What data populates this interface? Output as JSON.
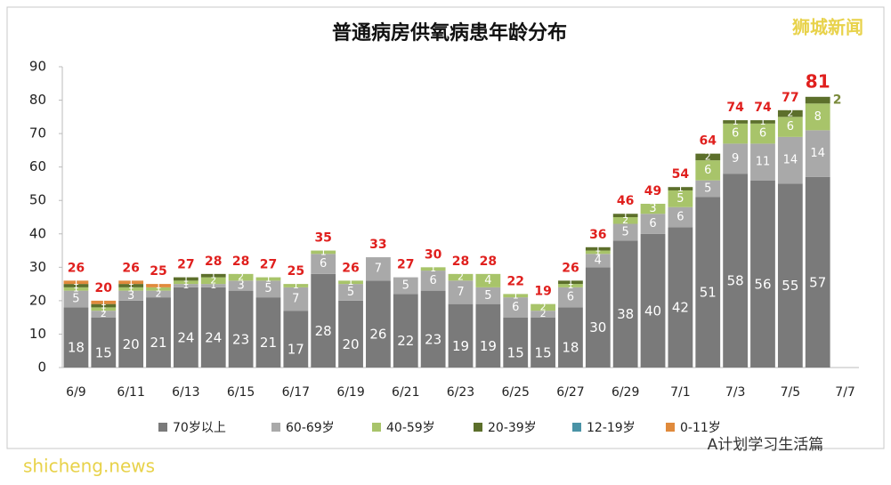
{
  "chart_data": {
    "type": "stacked-bar",
    "title": "普通病房供氧病患年龄分布",
    "categories": [
      "6/9",
      null,
      "6/11",
      null,
      "6/13",
      null,
      "6/15",
      null,
      "6/17",
      null,
      "6/19",
      null,
      "6/21",
      null,
      "6/23",
      null,
      "6/25",
      null,
      "6/27",
      null,
      "6/29",
      null,
      "7/1",
      null,
      "7/3",
      null,
      "7/5",
      null,
      "7/7"
    ],
    "series": [
      {
        "name": "70岁以上",
        "color": "#7a7a7a",
        "values": [
          18,
          15,
          20,
          21,
          24,
          24,
          23,
          21,
          17,
          28,
          20,
          26,
          22,
          23,
          19,
          19,
          15,
          15,
          18,
          30,
          38,
          40,
          42,
          51,
          58,
          56,
          55,
          57,
          null
        ]
      },
      {
        "name": "60-69岁",
        "color": "#a9a9a9",
        "values": [
          5,
          2,
          3,
          2,
          1,
          1,
          3,
          5,
          7,
          6,
          5,
          7,
          5,
          6,
          7,
          5,
          6,
          2,
          6,
          4,
          5,
          6,
          6,
          5,
          9,
          11,
          14,
          14,
          null
        ]
      },
      {
        "name": "40-59岁",
        "color": "#a8c46a",
        "values": [
          1,
          1,
          1,
          1,
          1,
          2,
          2,
          1,
          1,
          1,
          1,
          0,
          0,
          1,
          2,
          4,
          1,
          2,
          1,
          1,
          2,
          3,
          5,
          6,
          6,
          6,
          6,
          8,
          null
        ]
      },
      {
        "name": "20-39岁",
        "color": "#5c6f2b",
        "values": [
          1,
          1,
          1,
          0,
          1,
          1,
          0,
          0,
          0,
          0,
          0,
          0,
          0,
          0,
          0,
          0,
          0,
          0,
          1,
          1,
          1,
          0,
          1,
          2,
          1,
          1,
          2,
          2,
          null
        ]
      },
      {
        "name": "12-19岁",
        "color": "#4a93a6",
        "values": [
          0,
          0,
          0,
          0,
          0,
          0,
          0,
          0,
          0,
          0,
          0,
          0,
          0,
          0,
          0,
          0,
          0,
          0,
          0,
          0,
          0,
          0,
          0,
          0,
          0,
          0,
          0,
          0,
          null
        ]
      },
      {
        "name": "0-11岁",
        "color": "#e08a3c",
        "values": [
          1,
          1,
          1,
          1,
          0,
          0,
          0,
          0,
          0,
          0,
          0,
          0,
          0,
          0,
          0,
          0,
          0,
          0,
          0,
          0,
          0,
          0,
          0,
          0,
          0,
          0,
          0,
          0,
          null
        ]
      }
    ],
    "totals": [
      26,
      20,
      26,
      25,
      27,
      28,
      28,
      27,
      25,
      35,
      26,
      33,
      27,
      30,
      28,
      28,
      22,
      19,
      26,
      36,
      46,
      49,
      54,
      64,
      74,
      74,
      77,
      81,
      null
    ],
    "ylim": [
      0,
      90
    ],
    "yticks": [
      0,
      10,
      20,
      30,
      40,
      50,
      60,
      70,
      80,
      90
    ],
    "watermarks": [
      "狮城新闻",
      "A计划学习生活篇",
      "shicheng.news"
    ]
  }
}
